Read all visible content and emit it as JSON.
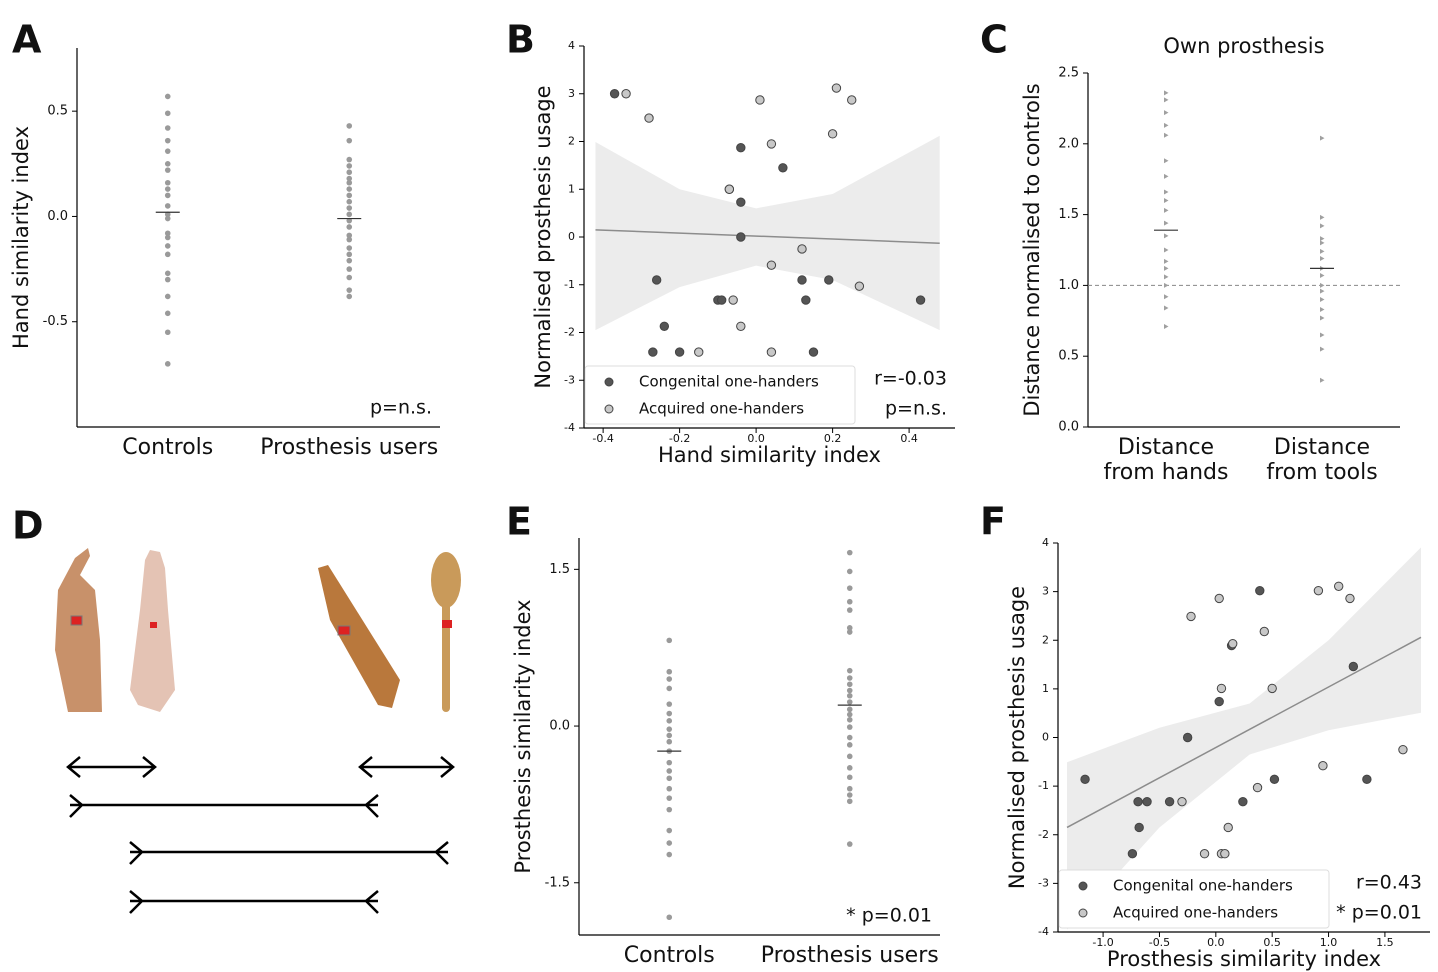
{
  "chart_data": [
    {
      "type": "strip",
      "panel_label": "A",
      "ylabel": "Hand similarity index",
      "categories": [
        "Controls",
        "Prosthesis users"
      ],
      "color": "#9a9a9a",
      "marker": "circle",
      "values": [
        [
          0.57,
          0.49,
          0.42,
          0.36,
          0.31,
          0.25,
          0.22,
          0.16,
          0.13,
          0.1,
          0.05,
          0.01,
          -0.01,
          -0.08,
          -0.1,
          -0.14,
          -0.18,
          -0.27,
          -0.3,
          -0.38,
          -0.46,
          -0.55,
          -0.7
        ],
        [
          0.43,
          0.36,
          0.27,
          0.24,
          0.21,
          0.18,
          0.16,
          0.13,
          0.1,
          0.07,
          0.04,
          0.01,
          -0.02,
          -0.05,
          -0.09,
          -0.11,
          -0.15,
          -0.18,
          -0.21,
          -0.25,
          -0.29,
          -0.35,
          -0.38
        ]
      ],
      "means": [
        0.02,
        -0.01
      ],
      "ylim": [
        -1.0,
        0.8
      ],
      "yticks": [
        -0.5,
        {
          "value": 0,
          "label": "0.0"
        },
        0.5
      ],
      "annotations": [
        "p=n.s."
      ]
    },
    {
      "type": "scatter",
      "panel_label": "B",
      "xlabel": "Hand similarity index",
      "ylabel": "Normalised prosthesis usage",
      "series": [
        {
          "name": "Congenital one-handers",
          "color": "#555555",
          "x": [
            -0.37,
            -0.26,
            -0.27,
            -0.24,
            -0.2,
            -0.1,
            -0.09,
            -0.07,
            -0.04,
            -0.04,
            -0.04,
            0.07,
            0.12,
            0.13,
            0.15,
            0.19,
            0.43
          ],
          "y": [
            3.0,
            -0.9,
            -2.41,
            -1.87,
            -2.41,
            -1.32,
            -1.32,
            1.0,
            1.87,
            0.73,
            0,
            1.45,
            -0.9,
            -1.32,
            -2.41,
            -0.9,
            -1.32
          ]
        },
        {
          "name": "Acquired one-handers",
          "color": "#c8c8c8",
          "x": [
            -0.34,
            -0.28,
            -0.15,
            -0.07,
            -0.06,
            -0.04,
            0.01,
            0.04,
            0.04,
            0.04,
            0.12,
            0.2,
            0.21,
            0.25,
            0.27
          ],
          "y": [
            3.0,
            2.49,
            -2.41,
            1.0,
            -1.32,
            -1.87,
            2.87,
            -2.41,
            1.95,
            -0.59,
            -0.25,
            2.16,
            3.12,
            2.87,
            -1.03
          ]
        }
      ],
      "fit": {
        "x": [
          -0.42,
          0.48
        ],
        "y": [
          0.15,
          -0.13
        ],
        "color": "#8c8c8c"
      },
      "band": {
        "x": [
          -0.42,
          -0.2,
          0,
          0.2,
          0.48
        ],
        "upper": [
          1.99,
          1.0,
          0.6,
          0.9,
          2.12
        ],
        "lower": [
          -1.95,
          -1.05,
          -0.6,
          -0.9,
          -1.95
        ],
        "color": "#ececec"
      },
      "xlim": [
        -0.45,
        0.52
      ],
      "xticks": [
        -0.4,
        -0.2,
        {
          "value": 0,
          "label": "0.0"
        },
        0.2,
        0.4
      ],
      "ylim": [
        -4,
        4
      ],
      "yticks": [
        -4,
        -3,
        -2,
        -1,
        0,
        1,
        2,
        3,
        4
      ],
      "legend": "lower left",
      "annotations": [
        "r=-0.03",
        "p=n.s."
      ]
    },
    {
      "type": "strip",
      "panel_label": "C",
      "title": "Own prosthesis",
      "ylabel": "Distance normalised to controls",
      "categories": [
        "Distance from hands",
        "Distance from tools"
      ],
      "color": "#a0a0a0",
      "marker": "triangle",
      "values": [
        [
          2.36,
          2.31,
          2.22,
          2.13,
          2.06,
          1.88,
          1.77,
          1.66,
          1.6,
          1.53,
          1.44,
          1.35,
          1.25,
          1.17,
          1.12,
          1.06,
          1.0,
          0.92,
          0.84,
          0.71
        ],
        [
          2.04,
          1.48,
          1.42,
          1.33,
          1.3,
          1.24,
          1.19,
          1.12,
          1.07,
          1.0,
          0.96,
          0.9,
          0.83,
          0.77,
          0.65,
          0.55,
          0.33
        ]
      ],
      "means": [
        1.39,
        1.12
      ],
      "hline": 1.0,
      "ylim": [
        0,
        2.5
      ],
      "yticks": [
        {
          "value": 0,
          "label": "0.0"
        },
        0.5,
        {
          "value": 1,
          "label": "1.0"
        },
        1.5,
        {
          "value": 2,
          "label": "2.0"
        },
        2.5
      ]
    },
    {
      "type": "strip",
      "panel_label": "E",
      "ylabel": "Prosthesis similarity index",
      "categories": [
        "Controls",
        "Prosthesis users"
      ],
      "color": "#9a9a9a",
      "marker": "circle",
      "values": [
        [
          0.82,
          0.52,
          0.45,
          0.36,
          0.21,
          0.12,
          0.05,
          -0.03,
          -0.09,
          -0.15,
          -0.24,
          -0.35,
          -0.43,
          -0.5,
          -0.6,
          -0.69,
          -0.8,
          -1.0,
          -1.12,
          -1.23,
          -1.83
        ],
        [
          1.66,
          1.48,
          1.32,
          1.19,
          1.11,
          0.94,
          0.9,
          0.53,
          0.46,
          0.4,
          0.34,
          0.29,
          0.23,
          0.16,
          0.11,
          0.06,
          -0.01,
          -0.11,
          -0.18,
          -0.29,
          -0.4,
          -0.49,
          -0.6,
          -0.66,
          -0.72,
          -1.13
        ]
      ],
      "means": [
        -0.24,
        0.2
      ],
      "ylim": [
        -2.0,
        1.8
      ],
      "yticks": [
        -1.5,
        {
          "value": 0,
          "label": "0.0"
        },
        1.5
      ],
      "annotations": [
        "* p=0.01"
      ]
    },
    {
      "type": "scatter",
      "panel_label": "F",
      "xlabel": "Prosthesis similarity index",
      "ylabel": "Normalised prosthesis usage",
      "series": [
        {
          "name": "Congenital one-handers",
          "color": "#555555",
          "x": [
            -1.16,
            -0.74,
            -0.69,
            -0.68,
            -0.61,
            -0.41,
            -0.25,
            0.03,
            0.14,
            0.24,
            0.39,
            0.52,
            1.22,
            1.34
          ],
          "y": [
            -0.86,
            -2.39,
            -1.32,
            -1.85,
            -1.32,
            -1.32,
            0,
            0.74,
            1.89,
            -1.32,
            3.02,
            -0.86,
            1.46,
            -0.86
          ]
        },
        {
          "name": "Acquired one-handers",
          "color": "#c8c8c8",
          "x": [
            -0.3,
            -0.22,
            -0.1,
            0.03,
            0.05,
            0.05,
            0.08,
            0.11,
            0.15,
            0.37,
            0.43,
            0.5,
            0.91,
            0.95,
            1.09,
            1.19,
            1.66
          ],
          "y": [
            -1.32,
            2.49,
            -2.39,
            2.86,
            1.01,
            -2.39,
            -2.39,
            -1.85,
            1.93,
            -1.03,
            2.18,
            1.01,
            3.02,
            -0.58,
            3.11,
            2.86,
            -0.25
          ]
        }
      ],
      "fit": {
        "x": [
          -1.32,
          1.82
        ],
        "y": [
          -1.85,
          2.06
        ],
        "color": "#8c8c8c"
      },
      "band": {
        "x": [
          -1.32,
          -0.5,
          0.3,
          1.0,
          1.82
        ],
        "upper": [
          -0.51,
          0.2,
          0.7,
          2.0,
          3.91
        ],
        "lower": [
          -3.95,
          -1.85,
          -0.35,
          0.15,
          0.51
        ],
        "color": "#ececec"
      },
      "xlim": [
        -1.4,
        1.9
      ],
      "xticks": [
        {
          "value": -1,
          "label": "-1.0"
        },
        -0.5,
        {
          "value": 0,
          "label": "0.0"
        },
        0.5,
        {
          "value": 1,
          "label": "1.0"
        },
        1.5
      ],
      "ylim": [
        -4,
        4
      ],
      "yticks": [
        -4,
        -3,
        -2,
        -1,
        0,
        1,
        2,
        3,
        4
      ],
      "legend": "lower left",
      "annotations": [
        "r=0.43",
        "* p=0.01"
      ]
    }
  ],
  "diagram": {
    "panel_label": "D"
  }
}
